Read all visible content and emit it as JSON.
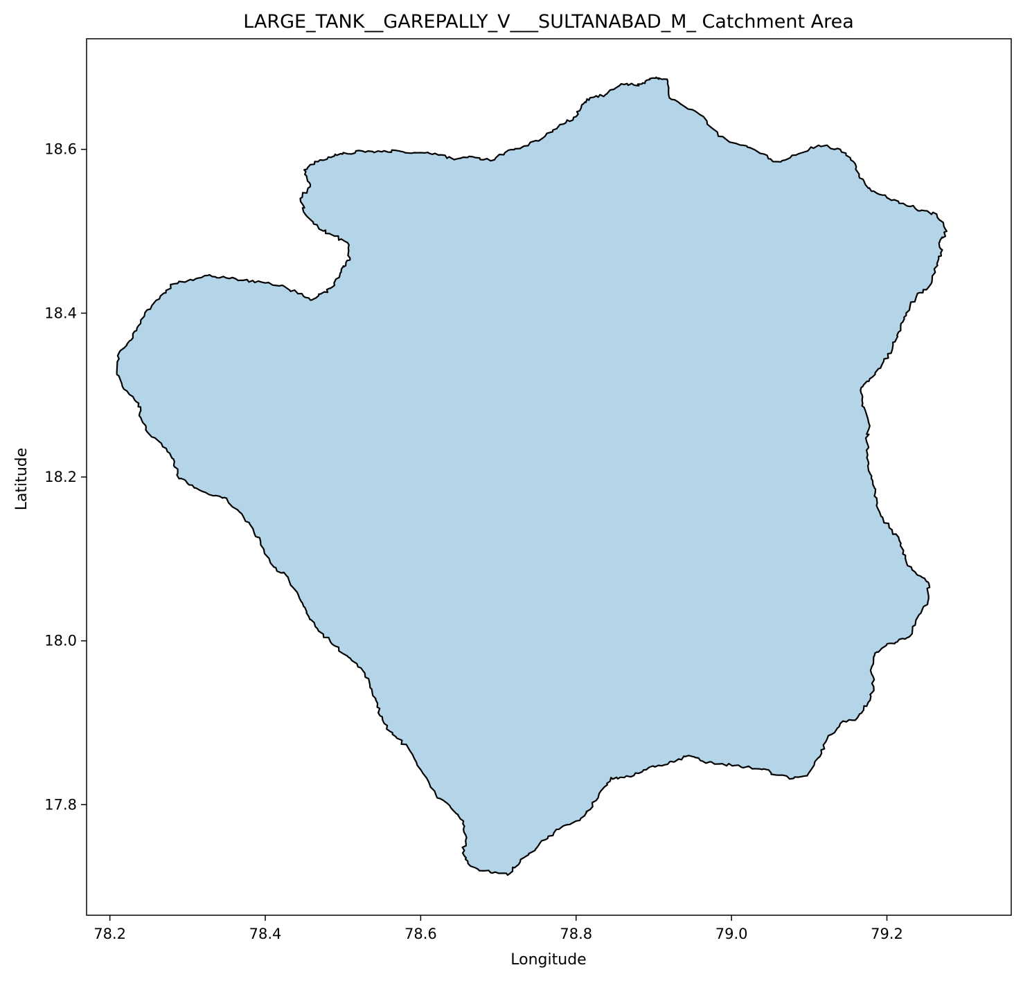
{
  "chart_data": {
    "type": "map",
    "title": "LARGE_TANK__GAREPALLY_V___SULTANABAD_M_ Catchment Area",
    "xlabel": "Longitude",
    "ylabel": "Latitude",
    "xlim": [
      78.17,
      79.36
    ],
    "ylim": [
      17.665,
      18.735
    ],
    "xticks": [
      78.2,
      78.4,
      78.6,
      78.8,
      79.0,
      79.2
    ],
    "xtick_labels": [
      "78.2",
      "78.4",
      "78.6",
      "78.8",
      "79.0",
      "79.2"
    ],
    "yticks": [
      17.8,
      18.0,
      18.2,
      18.4,
      18.6
    ],
    "ytick_labels": [
      "17.8",
      "18.0",
      "18.2",
      "18.4",
      "18.6"
    ],
    "grid": false,
    "fill_color": "#b4d4e8",
    "edge_color": "#000000",
    "polygon": [
      [
        78.838,
        18.667
      ],
      [
        78.858,
        18.68
      ],
      [
        78.877,
        18.678
      ],
      [
        78.889,
        18.683
      ],
      [
        78.903,
        18.688
      ],
      [
        78.918,
        18.683
      ],
      [
        78.92,
        18.663
      ],
      [
        78.94,
        18.652
      ],
      [
        78.964,
        18.64
      ],
      [
        78.983,
        18.616
      ],
      [
        79.015,
        18.605
      ],
      [
        79.037,
        18.595
      ],
      [
        79.059,
        18.585
      ],
      [
        79.083,
        18.593
      ],
      [
        79.112,
        18.605
      ],
      [
        79.14,
        18.6
      ],
      [
        79.157,
        18.585
      ],
      [
        79.165,
        18.565
      ],
      [
        79.18,
        18.549
      ],
      [
        79.2,
        18.541
      ],
      [
        79.221,
        18.534
      ],
      [
        79.243,
        18.525
      ],
      [
        79.264,
        18.521
      ],
      [
        79.277,
        18.5
      ],
      [
        79.268,
        18.487
      ],
      [
        79.27,
        18.47
      ],
      [
        79.261,
        18.454
      ],
      [
        79.257,
        18.436
      ],
      [
        79.242,
        18.425
      ],
      [
        79.23,
        18.41
      ],
      [
        79.222,
        18.395
      ],
      [
        79.215,
        18.377
      ],
      [
        79.207,
        18.356
      ],
      [
        79.193,
        18.336
      ],
      [
        79.178,
        18.32
      ],
      [
        79.166,
        18.306
      ],
      [
        79.168,
        18.287
      ],
      [
        79.177,
        18.265
      ],
      [
        79.174,
        18.243
      ],
      [
        79.176,
        18.219
      ],
      [
        79.18,
        18.198
      ],
      [
        79.185,
        18.181
      ],
      [
        79.189,
        18.16
      ],
      [
        79.203,
        18.138
      ],
      [
        79.218,
        18.119
      ],
      [
        79.225,
        18.096
      ],
      [
        79.24,
        18.08
      ],
      [
        79.254,
        18.07
      ],
      [
        79.253,
        18.049
      ],
      [
        79.239,
        18.028
      ],
      [
        79.229,
        18.005
      ],
      [
        79.211,
        17.998
      ],
      [
        79.197,
        17.993
      ],
      [
        79.184,
        17.982
      ],
      [
        79.179,
        17.964
      ],
      [
        79.183,
        17.944
      ],
      [
        79.176,
        17.925
      ],
      [
        79.162,
        17.906
      ],
      [
        79.14,
        17.899
      ],
      [
        79.123,
        17.88
      ],
      [
        79.114,
        17.859
      ],
      [
        79.099,
        17.838
      ],
      [
        79.08,
        17.832
      ],
      [
        79.06,
        17.836
      ],
      [
        79.039,
        17.843
      ],
      [
        79.012,
        17.846
      ],
      [
        78.988,
        17.85
      ],
      [
        78.963,
        17.853
      ],
      [
        78.945,
        17.86
      ],
      [
        78.926,
        17.852
      ],
      [
        78.906,
        17.848
      ],
      [
        78.885,
        17.84
      ],
      [
        78.862,
        17.833
      ],
      [
        78.845,
        17.833
      ],
      [
        78.832,
        17.817
      ],
      [
        78.818,
        17.794
      ],
      [
        78.8,
        17.78
      ],
      [
        78.778,
        17.77
      ],
      [
        78.76,
        17.757
      ],
      [
        78.743,
        17.742
      ],
      [
        78.728,
        17.73
      ],
      [
        78.712,
        17.714
      ],
      [
        78.69,
        17.717
      ],
      [
        78.664,
        17.725
      ],
      [
        78.654,
        17.741
      ],
      [
        78.659,
        17.76
      ],
      [
        78.655,
        17.78
      ],
      [
        78.639,
        17.796
      ],
      [
        78.62,
        17.811
      ],
      [
        78.603,
        17.838
      ],
      [
        78.586,
        17.866
      ],
      [
        78.568,
        17.883
      ],
      [
        78.553,
        17.899
      ],
      [
        78.544,
        17.919
      ],
      [
        78.537,
        17.941
      ],
      [
        78.526,
        17.963
      ],
      [
        78.507,
        17.98
      ],
      [
        78.486,
        17.996
      ],
      [
        78.467,
        18.015
      ],
      [
        78.453,
        18.034
      ],
      [
        78.444,
        18.052
      ],
      [
        78.429,
        18.078
      ],
      [
        78.411,
        18.09
      ],
      [
        78.398,
        18.112
      ],
      [
        78.384,
        18.137
      ],
      [
        78.366,
        18.158
      ],
      [
        78.347,
        18.175
      ],
      [
        78.325,
        18.18
      ],
      [
        78.306,
        18.19
      ],
      [
        78.289,
        18.198
      ],
      [
        78.283,
        18.219
      ],
      [
        78.268,
        18.237
      ],
      [
        78.248,
        18.255
      ],
      [
        78.24,
        18.272
      ],
      [
        78.237,
        18.29
      ],
      [
        78.222,
        18.305
      ],
      [
        78.209,
        18.325
      ],
      [
        78.21,
        18.348
      ],
      [
        78.225,
        18.366
      ],
      [
        78.235,
        18.382
      ],
      [
        78.248,
        18.404
      ],
      [
        78.265,
        18.421
      ],
      [
        78.283,
        18.436
      ],
      [
        78.307,
        18.44
      ],
      [
        78.328,
        18.447
      ],
      [
        78.35,
        18.443
      ],
      [
        78.371,
        18.44
      ],
      [
        78.395,
        18.438
      ],
      [
        78.421,
        18.434
      ],
      [
        78.441,
        18.425
      ],
      [
        78.458,
        18.416
      ],
      [
        78.476,
        18.426
      ],
      [
        78.489,
        18.434
      ],
      [
        78.498,
        18.454
      ],
      [
        78.509,
        18.465
      ],
      [
        78.506,
        18.486
      ],
      [
        78.485,
        18.496
      ],
      [
        78.468,
        18.505
      ],
      [
        78.452,
        18.52
      ],
      [
        78.445,
        18.54
      ],
      [
        78.458,
        18.557
      ],
      [
        78.45,
        18.575
      ],
      [
        78.468,
        18.585
      ],
      [
        78.489,
        18.592
      ],
      [
        78.504,
        18.595
      ],
      [
        78.525,
        18.598
      ],
      [
        78.55,
        18.597
      ],
      [
        78.572,
        18.598
      ],
      [
        78.6,
        18.596
      ],
      [
        78.623,
        18.593
      ],
      [
        78.645,
        18.588
      ],
      [
        78.667,
        18.591
      ],
      [
        78.69,
        18.586
      ],
      [
        78.713,
        18.599
      ],
      [
        78.733,
        18.604
      ],
      [
        78.76,
        18.616
      ],
      [
        78.784,
        18.631
      ],
      [
        78.8,
        18.64
      ],
      [
        78.808,
        18.655
      ],
      [
        78.818,
        18.663
      ]
    ]
  }
}
